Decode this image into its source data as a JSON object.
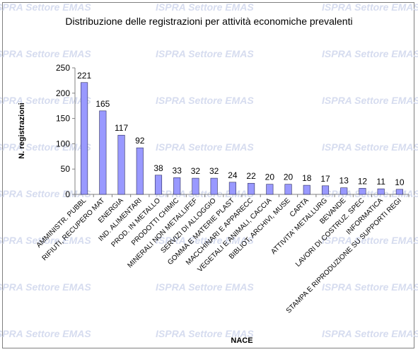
{
  "watermark": {
    "text": "ISPRA Settore EMAS"
  },
  "chart_data": {
    "type": "bar",
    "title": "Distribuzione delle registrazioni per attività economiche prevalenti",
    "xlabel": "NACE",
    "ylabel": "N. registrazioni",
    "ylim": [
      0,
      250
    ],
    "yticks": [
      0,
      50,
      100,
      150,
      200,
      250
    ],
    "grid": false,
    "legend": "none",
    "bar_color": "#9999ff",
    "categories": [
      "AMMINISTR. PUBBL",
      "RIFIUTI, RECUPERO MAT",
      "ENERGIA",
      "IND. ALIMENTARI",
      "PROD. IN METALLO",
      "PRODOTTI CHIMIC",
      "MINERALI NON METALLIFEF",
      "SERVIZI DI ALLOGGIO",
      "GOMMA E MATERIE PLAST",
      "MACCHINARI E APPARECC",
      "VEGETALI E ANIMALI, CACCIA",
      "BIBLIOT, ARCHIVI, MUSE",
      "CARTA",
      "ATTIVITA' METALLURG",
      "BEVANDE",
      "LAVORI DI COSTRUZ. SPEC",
      "INFORMATICA",
      "STAMPA E RIPRODUZIONE SU SUPPORTI REGI"
    ],
    "values": [
      221,
      165,
      117,
      92,
      38,
      33,
      32,
      32,
      24,
      22,
      20,
      20,
      18,
      17,
      13,
      12,
      11,
      10
    ]
  }
}
